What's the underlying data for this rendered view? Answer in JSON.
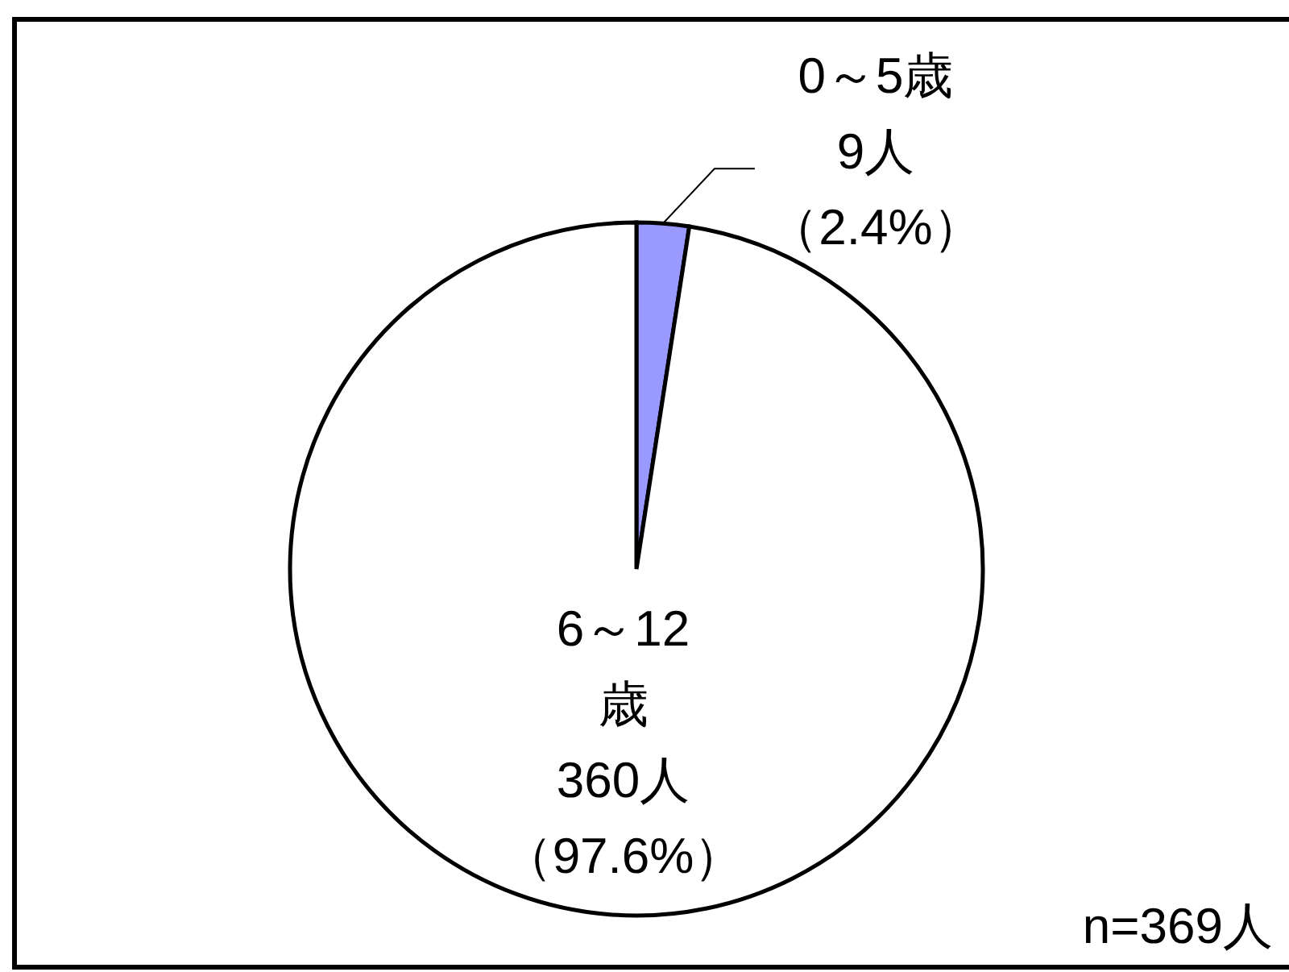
{
  "chart_data": {
    "type": "pie",
    "categories": [
      "0～5歳",
      "6～12歳"
    ],
    "values": [
      9,
      360
    ],
    "colors": [
      "#9999ff",
      "#ffffff"
    ],
    "value_labels": [
      "9人（2.4%）",
      "360人（97.6%）"
    ],
    "annotations": [
      "n=369人"
    ]
  }
}
